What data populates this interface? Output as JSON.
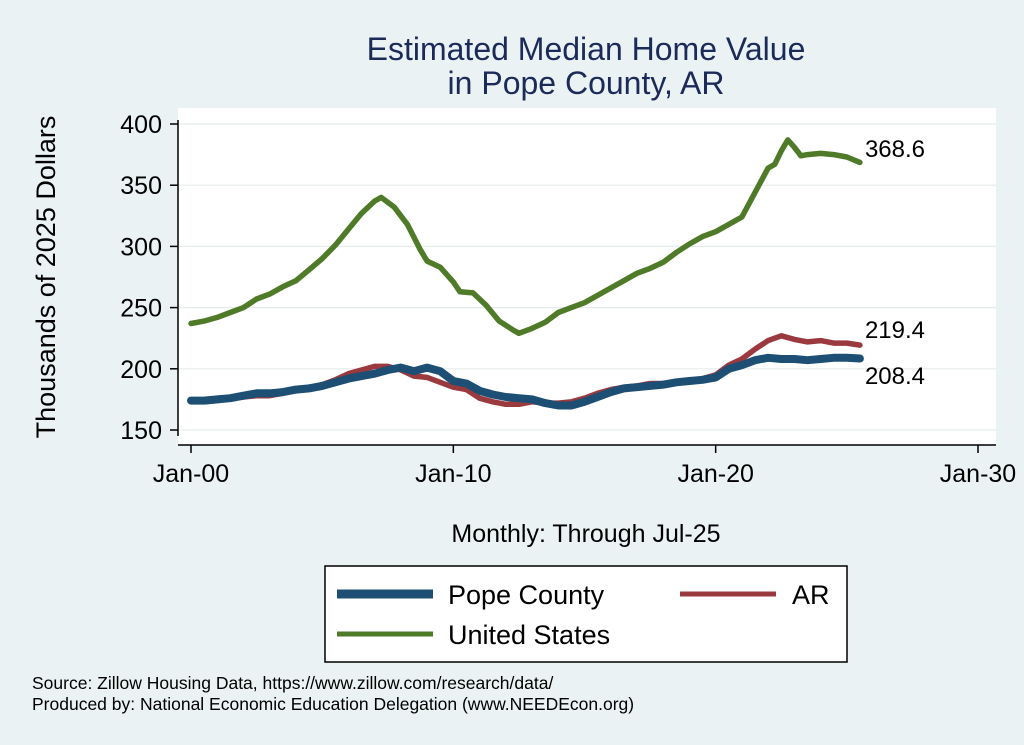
{
  "chart_data": {
    "type": "line",
    "title": [
      "Estimated Median Home Value",
      "in Pope County, AR"
    ],
    "ylabel": "Thousands of 2025 Dollars",
    "xlabel": "Monthly: Through Jul-25",
    "x_range": [
      "2000-01",
      "2030-01"
    ],
    "x_ticks": [
      {
        "date": "2000-01",
        "label": "Jan-00"
      },
      {
        "date": "2010-01",
        "label": "Jan-10"
      },
      {
        "date": "2020-01",
        "label": "Jan-20"
      },
      {
        "date": "2030-01",
        "label": "Jan-30"
      }
    ],
    "ylim": [
      150,
      400
    ],
    "y_ticks": [
      150,
      200,
      250,
      300,
      350,
      400
    ],
    "grid": "horizontal",
    "legend_position": "bottom",
    "series": [
      {
        "name": "United States",
        "color": "#4f7a28",
        "end_label": "368.6",
        "points": [
          [
            "2000-01",
            237
          ],
          [
            "2000-07",
            239
          ],
          [
            "2001-01",
            242
          ],
          [
            "2001-07",
            246
          ],
          [
            "2002-01",
            250
          ],
          [
            "2002-07",
            257
          ],
          [
            "2003-01",
            261
          ],
          [
            "2003-07",
            267
          ],
          [
            "2004-01",
            272
          ],
          [
            "2004-07",
            281
          ],
          [
            "2005-01",
            290
          ],
          [
            "2005-07",
            301
          ],
          [
            "2006-01",
            314
          ],
          [
            "2006-07",
            327
          ],
          [
            "2007-01",
            337
          ],
          [
            "2007-04",
            340
          ],
          [
            "2007-10",
            332
          ],
          [
            "2008-04",
            318
          ],
          [
            "2008-10",
            297
          ],
          [
            "2009-01",
            288
          ],
          [
            "2009-07",
            283
          ],
          [
            "2010-01",
            271
          ],
          [
            "2010-04",
            263
          ],
          [
            "2010-10",
            262
          ],
          [
            "2011-04",
            252
          ],
          [
            "2011-10",
            239
          ],
          [
            "2012-04",
            232
          ],
          [
            "2012-07",
            229
          ],
          [
            "2013-01",
            233
          ],
          [
            "2013-07",
            238
          ],
          [
            "2014-01",
            246
          ],
          [
            "2014-07",
            250
          ],
          [
            "2015-01",
            254
          ],
          [
            "2015-07",
            260
          ],
          [
            "2016-01",
            266
          ],
          [
            "2016-07",
            272
          ],
          [
            "2017-01",
            278
          ],
          [
            "2017-07",
            282
          ],
          [
            "2018-01",
            287
          ],
          [
            "2018-07",
            295
          ],
          [
            "2019-01",
            302
          ],
          [
            "2019-07",
            308
          ],
          [
            "2020-01",
            312
          ],
          [
            "2020-07",
            318
          ],
          [
            "2021-01",
            324
          ],
          [
            "2021-07",
            344
          ],
          [
            "2022-01",
            364
          ],
          [
            "2022-04",
            367
          ],
          [
            "2022-07",
            378
          ],
          [
            "2022-10",
            387
          ],
          [
            "2023-01",
            381
          ],
          [
            "2023-04",
            374
          ],
          [
            "2023-07",
            375
          ],
          [
            "2024-01",
            376
          ],
          [
            "2024-07",
            375
          ],
          [
            "2025-01",
            373
          ],
          [
            "2025-07",
            368.6
          ]
        ]
      },
      {
        "name": "AR",
        "color": "#9b3a3e",
        "end_label": "219.4",
        "points": [
          [
            "2000-01",
            173
          ],
          [
            "2000-07",
            173
          ],
          [
            "2001-01",
            174
          ],
          [
            "2001-07",
            176
          ],
          [
            "2002-01",
            177
          ],
          [
            "2002-07",
            178
          ],
          [
            "2003-01",
            178
          ],
          [
            "2003-07",
            180
          ],
          [
            "2004-01",
            182
          ],
          [
            "2004-07",
            185
          ],
          [
            "2005-01",
            187
          ],
          [
            "2005-07",
            191
          ],
          [
            "2006-01",
            196
          ],
          [
            "2006-07",
            199
          ],
          [
            "2007-01",
            202
          ],
          [
            "2007-07",
            202
          ],
          [
            "2008-01",
            199
          ],
          [
            "2008-07",
            194
          ],
          [
            "2009-01",
            193
          ],
          [
            "2009-07",
            189
          ],
          [
            "2010-01",
            185
          ],
          [
            "2010-07",
            183
          ],
          [
            "2011-01",
            176
          ],
          [
            "2011-07",
            173
          ],
          [
            "2012-01",
            171
          ],
          [
            "2012-07",
            171
          ],
          [
            "2013-01",
            173
          ],
          [
            "2013-07",
            172
          ],
          [
            "2014-01",
            172
          ],
          [
            "2014-07",
            173
          ],
          [
            "2015-01",
            176
          ],
          [
            "2015-07",
            180
          ],
          [
            "2016-01",
            183
          ],
          [
            "2016-07",
            185
          ],
          [
            "2017-01",
            186
          ],
          [
            "2017-07",
            188
          ],
          [
            "2018-01",
            188
          ],
          [
            "2018-07",
            189
          ],
          [
            "2019-01",
            190
          ],
          [
            "2019-07",
            192
          ],
          [
            "2020-01",
            195
          ],
          [
            "2020-07",
            203
          ],
          [
            "2021-01",
            208
          ],
          [
            "2021-07",
            216
          ],
          [
            "2022-01",
            223
          ],
          [
            "2022-07",
            227
          ],
          [
            "2023-01",
            224
          ],
          [
            "2023-07",
            222
          ],
          [
            "2024-01",
            223
          ],
          [
            "2024-07",
            221
          ],
          [
            "2025-01",
            221
          ],
          [
            "2025-07",
            219.4
          ]
        ]
      },
      {
        "name": "Pope County",
        "color": "#1d4e73",
        "end_label": "208.4",
        "points": [
          [
            "2000-01",
            174
          ],
          [
            "2000-07",
            174
          ],
          [
            "2001-01",
            175
          ],
          [
            "2001-07",
            176
          ],
          [
            "2002-01",
            178
          ],
          [
            "2002-07",
            180
          ],
          [
            "2003-01",
            180
          ],
          [
            "2003-07",
            181
          ],
          [
            "2004-01",
            183
          ],
          [
            "2004-07",
            184
          ],
          [
            "2005-01",
            186
          ],
          [
            "2005-07",
            189
          ],
          [
            "2006-01",
            192
          ],
          [
            "2006-07",
            194
          ],
          [
            "2007-01",
            196
          ],
          [
            "2007-07",
            199
          ],
          [
            "2008-01",
            201
          ],
          [
            "2008-07",
            198
          ],
          [
            "2009-01",
            201
          ],
          [
            "2009-07",
            198
          ],
          [
            "2010-01",
            190
          ],
          [
            "2010-07",
            188
          ],
          [
            "2011-01",
            182
          ],
          [
            "2011-07",
            179
          ],
          [
            "2012-01",
            177
          ],
          [
            "2012-07",
            176
          ],
          [
            "2013-01",
            175
          ],
          [
            "2013-07",
            172
          ],
          [
            "2014-01",
            170
          ],
          [
            "2014-07",
            170
          ],
          [
            "2015-01",
            173
          ],
          [
            "2015-07",
            177
          ],
          [
            "2016-01",
            181
          ],
          [
            "2016-07",
            184
          ],
          [
            "2017-01",
            185
          ],
          [
            "2017-07",
            186
          ],
          [
            "2018-01",
            187
          ],
          [
            "2018-07",
            189
          ],
          [
            "2019-01",
            190
          ],
          [
            "2019-07",
            191
          ],
          [
            "2020-01",
            193
          ],
          [
            "2020-07",
            200
          ],
          [
            "2021-01",
            203
          ],
          [
            "2021-07",
            207
          ],
          [
            "2022-01",
            209
          ],
          [
            "2022-07",
            208
          ],
          [
            "2023-01",
            208
          ],
          [
            "2023-07",
            207
          ],
          [
            "2024-01",
            208
          ],
          [
            "2024-07",
            209
          ],
          [
            "2025-01",
            209
          ],
          [
            "2025-07",
            208.4
          ]
        ]
      }
    ],
    "legend": [
      {
        "name": "Pope County",
        "color": "#1d4e73"
      },
      {
        "name": "AR",
        "color": "#9b3a3e"
      },
      {
        "name": "United States",
        "color": "#4f7a28"
      }
    ]
  },
  "notes": [
    "Source: Zillow Housing Data, https://www.zillow.com/research/data/",
    "Produced by: National Economic Education Delegation (www.NEEDEcon.org)"
  ]
}
